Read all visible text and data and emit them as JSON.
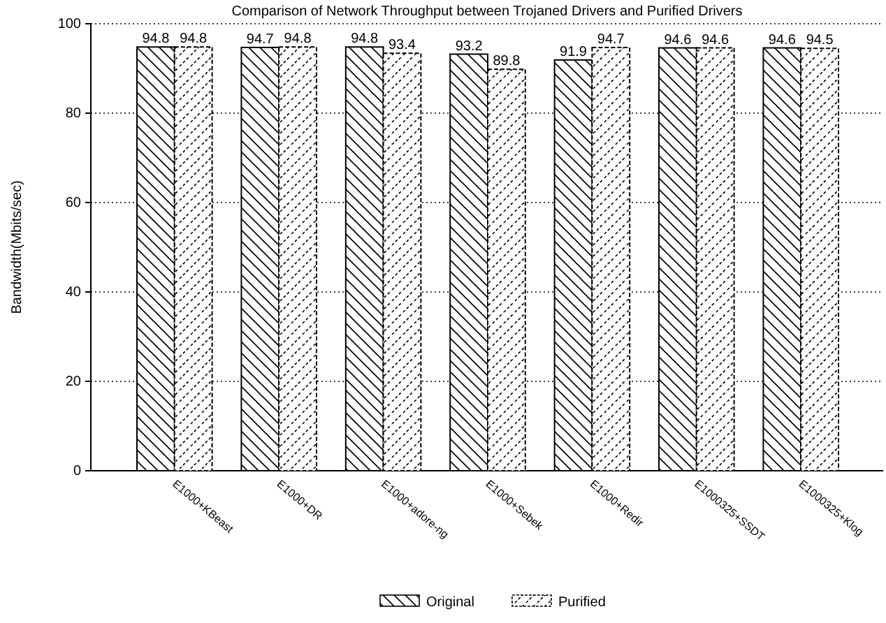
{
  "chart_data": {
    "type": "bar",
    "title": "Comparison of Network Throughput between Trojaned Drivers and Purified Drivers",
    "ylabel": "Bandwidth(Mbits/sec)",
    "categories": [
      "E1000+KBeast",
      "E1000+DR",
      "E1000+adore-ng",
      "E1000+Sebek",
      "E1000+Redir",
      "E1000325+SSDT",
      "E1000325+Klog"
    ],
    "series": [
      {
        "name": "Original",
        "color": "#000000",
        "values": [
          94.8,
          94.7,
          94.8,
          93.2,
          91.9,
          94.6,
          94.6
        ]
      },
      {
        "name": "Purified",
        "color": "#000000",
        "values": [
          94.8,
          94.8,
          93.4,
          89.8,
          94.7,
          94.6,
          94.5
        ]
      }
    ],
    "ylim": [
      0,
      100
    ],
    "yticks": [
      0,
      20,
      40,
      60,
      80,
      100
    ],
    "grid": "y",
    "legend": "bottom",
    "data_labels": true
  }
}
